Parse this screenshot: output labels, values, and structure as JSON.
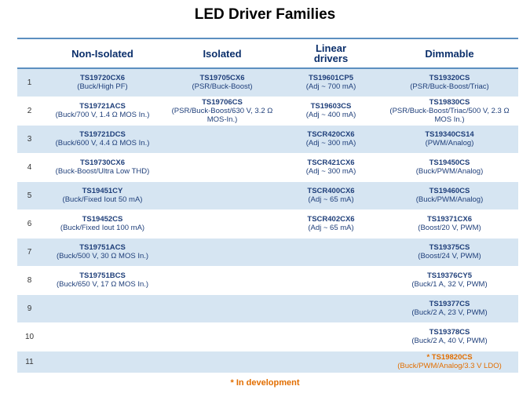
{
  "title": "LED Driver Families",
  "headers": [
    "",
    "Non-Isolated",
    "Isolated",
    "Linear drivers",
    "Dimmable"
  ],
  "rows": [
    {
      "num": "1",
      "c1": {
        "pn": "TS19720CX6",
        "desc": "(Buck/High PF)"
      },
      "c2": {
        "pn": "TS19705CX6",
        "desc": "(PSR/Buck-Boost)"
      },
      "c3": {
        "pn": "TS19601CP5",
        "desc": "(Adj ~ 700 mA)"
      },
      "c4": {
        "pn": "TS19320CS",
        "desc": "(PSR/Buck-Boost/Triac)"
      }
    },
    {
      "num": "2",
      "c1": {
        "pn": "TS19721ACS",
        "desc": "(Buck/700 V, 1.4 Ω MOS In.)"
      },
      "c2": {
        "pn": "TS19706CS",
        "desc": "(PSR/Buck-Boost/630 V, 3.2 Ω MOS-In.)"
      },
      "c3": {
        "pn": "TS19603CS",
        "desc": "(Adj ~ 400 mA)"
      },
      "c4": {
        "pn": "TS19830CS",
        "desc": "(PSR/Buck-Boost/Triac/500 V, 2.3 Ω MOS In.)"
      }
    },
    {
      "num": "3",
      "c1": {
        "pn": "TS19721DCS",
        "desc": "(Buck/600 V, 4.4 Ω MOS In.)"
      },
      "c2": {
        "pn": "",
        "desc": ""
      },
      "c3": {
        "pn": "TSCR420CX6",
        "desc": "(Adj ~ 300 mA)"
      },
      "c4": {
        "pn": "TS19340CS14",
        "desc": "(PWM/Analog)"
      }
    },
    {
      "num": "4",
      "c1": {
        "pn": "TS19730CX6",
        "desc": "(Buck-Boost/Ultra Low THD)"
      },
      "c2": {
        "pn": "",
        "desc": ""
      },
      "c3": {
        "pn": "TSCR421CX6",
        "desc": "(Adj ~ 300 mA)"
      },
      "c4": {
        "pn": "TS19450CS",
        "desc": "(Buck/PWM/Analog)"
      }
    },
    {
      "num": "5",
      "c1": {
        "pn": "TS19451CY",
        "desc": "(Buck/Fixed Iout 50 mA)"
      },
      "c2": {
        "pn": "",
        "desc": ""
      },
      "c3": {
        "pn": "TSCR400CX6",
        "desc": "(Adj ~ 65 mA)"
      },
      "c4": {
        "pn": "TS19460CS",
        "desc": "(Buck/PWM/Analog)"
      }
    },
    {
      "num": "6",
      "c1": {
        "pn": "TS19452CS",
        "desc": "(Buck/Fixed Iout 100 mA)"
      },
      "c2": {
        "pn": "",
        "desc": ""
      },
      "c3": {
        "pn": "TSCR402CX6",
        "desc": "(Adj ~ 65 mA)"
      },
      "c4": {
        "pn": "TS19371CX6",
        "desc": "(Boost/20 V, PWM)"
      }
    },
    {
      "num": "7",
      "c1": {
        "pn": "TS19751ACS",
        "desc": "(Buck/500 V, 30 Ω MOS In.)"
      },
      "c2": {
        "pn": "",
        "desc": ""
      },
      "c3": {
        "pn": "",
        "desc": ""
      },
      "c4": {
        "pn": "TS19375CS",
        "desc": "(Boost/24 V, PWM)"
      }
    },
    {
      "num": "8",
      "c1": {
        "pn": "TS19751BCS",
        "desc": "(Buck/650 V, 17 Ω MOS In.)"
      },
      "c2": {
        "pn": "",
        "desc": ""
      },
      "c3": {
        "pn": "",
        "desc": ""
      },
      "c4": {
        "pn": "TS19376CY5",
        "desc": "(Buck/1 A, 32 V, PWM)"
      }
    },
    {
      "num": "9",
      "c1": {
        "pn": "",
        "desc": ""
      },
      "c2": {
        "pn": "",
        "desc": ""
      },
      "c3": {
        "pn": "",
        "desc": ""
      },
      "c4": {
        "pn": "TS19377CS",
        "desc": "(Buck/2 A, 23 V, PWM)"
      }
    },
    {
      "num": "10",
      "c1": {
        "pn": "",
        "desc": ""
      },
      "c2": {
        "pn": "",
        "desc": ""
      },
      "c3": {
        "pn": "",
        "desc": ""
      },
      "c4": {
        "pn": "TS19378CS",
        "desc": "(Buck/2 A, 40 V, PWM)"
      }
    },
    {
      "num": "11",
      "c1": {
        "pn": "",
        "desc": ""
      },
      "c2": {
        "pn": "",
        "desc": ""
      },
      "c3": {
        "pn": "",
        "desc": ""
      },
      "c4": {
        "pn": "* TS19820CS",
        "desc": "(Buck/PWM/Analog/3.3 V LDO)",
        "in_development": true
      }
    }
  ],
  "footnote": "* In development",
  "colors": {
    "header_text": "#0b2f6b",
    "cell_text": "#1f3f7a",
    "stripe": "#d6e5f2",
    "rule": "#5c8fc0",
    "development": "#e26e00"
  }
}
